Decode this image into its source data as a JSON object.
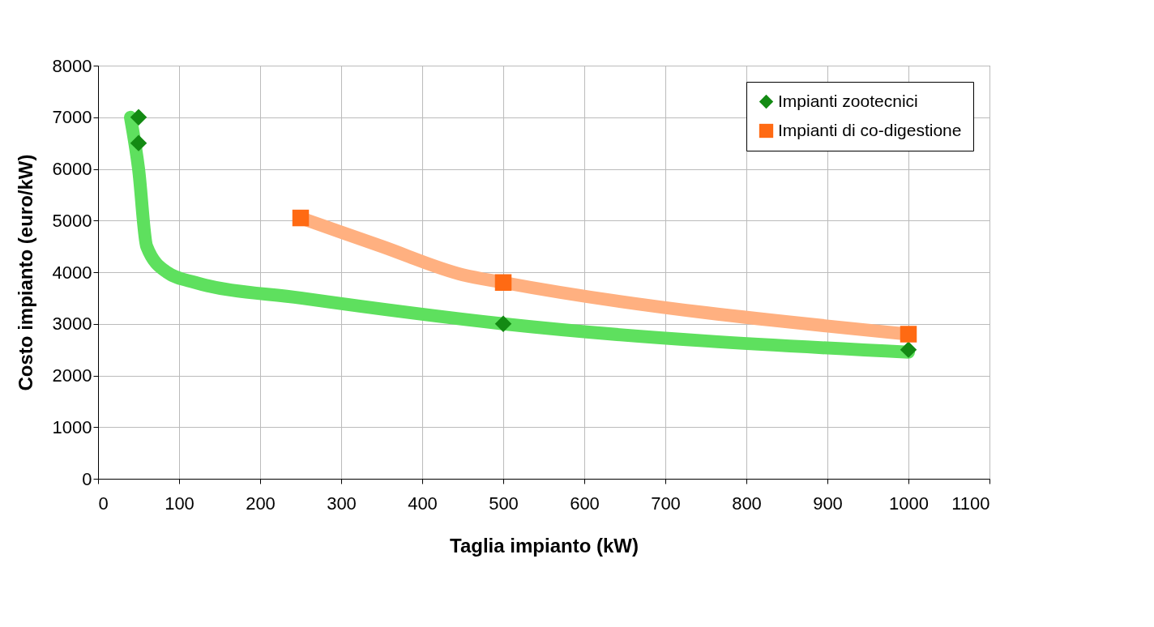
{
  "chart_data": {
    "type": "scatter",
    "xlabel": "Taglia impianto (kW)",
    "ylabel": "Costo impianto (euro/kW)",
    "xlim": [
      0,
      1100
    ],
    "xticks": [
      0,
      100,
      200,
      300,
      400,
      500,
      600,
      700,
      800,
      900,
      1000,
      1100
    ],
    "ylim": [
      0,
      8000
    ],
    "yticks": [
      0,
      1000,
      2000,
      3000,
      4000,
      5000,
      6000,
      7000,
      8000
    ],
    "grid": true,
    "legend": "top right",
    "series": [
      {
        "type": "line",
        "color": "#5ee05e",
        "x": [
          40,
          50,
          60,
          85,
          120,
          250,
          500,
          1000
        ],
        "values": [
          7000,
          6000,
          4500,
          4000,
          3800,
          3500,
          3000,
          2450
        ]
      },
      {
        "type": "line",
        "color": "#ffb080",
        "x": [
          250,
          350,
          450,
          500,
          1000
        ],
        "values": [
          5050,
          4500,
          3950,
          3800,
          2800
        ]
      },
      {
        "name": "Impianti zootecnici",
        "color": "#138a13",
        "marker": "diamond",
        "x": [
          50,
          50,
          500,
          1000
        ],
        "values": [
          7000,
          6500,
          3000,
          2500
        ]
      },
      {
        "name": "Impianti di co-digestione",
        "color": "#ff6a13",
        "marker": "square",
        "x": [
          250,
          500,
          1000
        ],
        "values": [
          5050,
          3800,
          2800
        ]
      }
    ]
  }
}
